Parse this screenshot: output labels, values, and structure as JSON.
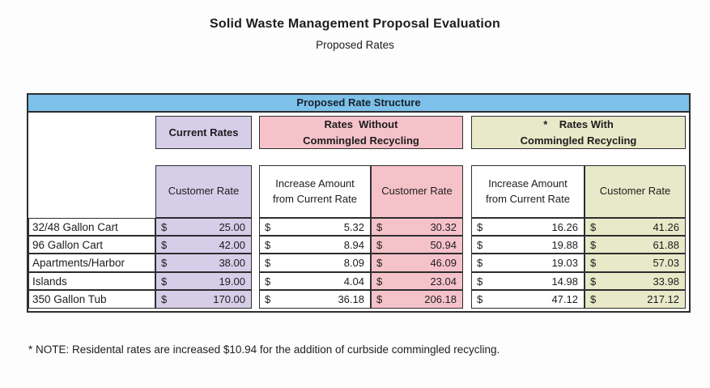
{
  "page": {
    "title": "Solid Waste Management Proposal Evaluation",
    "subtitle": "Proposed Rates",
    "footnote": "* NOTE: Residental rates are increased $10.94 for the addition of curbside commingled recycling."
  },
  "table": {
    "banner": "Proposed Rate Structure",
    "currency_symbol": "$",
    "sections": {
      "current": {
        "title": "Current Rates"
      },
      "without": {
        "line1": "Rates  Without",
        "line2": "Commingled Recycling"
      },
      "with": {
        "line1": "*    Rates With",
        "line2": "Commingled Recycling"
      }
    },
    "columns": {
      "customer_rate": "Customer Rate",
      "increase_amount": "Increase Amount from Current Rate"
    },
    "rows": [
      {
        "label": "32/48 Gallon Cart",
        "current": "25.00",
        "inc_without": "5.32",
        "rate_without": "30.32",
        "inc_with": "16.26",
        "rate_with": "41.26"
      },
      {
        "label": "96 Gallon Cart",
        "current": "42.00",
        "inc_without": "8.94",
        "rate_without": "50.94",
        "inc_with": "19.88",
        "rate_with": "61.88"
      },
      {
        "label": "Apartments/Harbor",
        "current": "38.00",
        "inc_without": "8.09",
        "rate_without": "46.09",
        "inc_with": "19.03",
        "rate_with": "57.03"
      },
      {
        "label": "Islands",
        "current": "19.00",
        "inc_without": "4.04",
        "rate_without": "23.04",
        "inc_with": "14.98",
        "rate_with": "33.98"
      },
      {
        "label": "350 Gallon Tub",
        "current": "170.00",
        "inc_without": "36.18",
        "rate_without": "206.18",
        "inc_with": "47.12",
        "rate_with": "217.12"
      }
    ],
    "colors": {
      "banner_blue": "#7dc1ea",
      "purple": "#d6cde9",
      "pink": "#f6c2ca",
      "green": "#e7e9c8",
      "border": "#2e2e2e"
    }
  }
}
